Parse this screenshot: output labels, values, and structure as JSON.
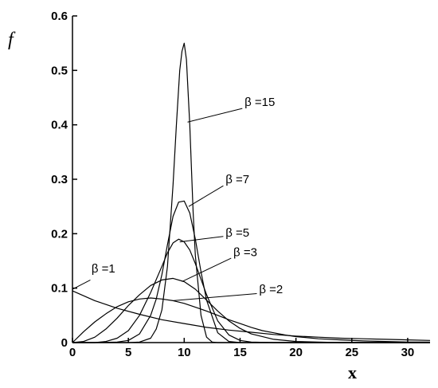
{
  "chart_data": {
    "type": "line",
    "title": "",
    "xlabel": "x",
    "ylabel": "f",
    "xlim": [
      0,
      32
    ],
    "ylim": [
      0,
      0.6
    ],
    "x_ticks": [
      "0",
      "5",
      "10",
      "15",
      "20",
      "25",
      "30"
    ],
    "y_ticks": [
      "0",
      "0.1",
      "0.2",
      "0.3",
      "0.4",
      "0.5",
      "0.6"
    ],
    "grid": false,
    "series": [
      {
        "name": "β =1",
        "x": [
          0,
          2,
          4,
          6,
          8,
          10,
          12,
          14,
          16,
          18,
          20,
          22,
          24,
          26,
          28,
          30,
          32
        ],
        "y": [
          0.095,
          0.077,
          0.063,
          0.052,
          0.042,
          0.035,
          0.028,
          0.023,
          0.019,
          0.015,
          0.012,
          0.01,
          0.008,
          0.007,
          0.006,
          0.005,
          0.004
        ]
      },
      {
        "name": "β =2",
        "x": [
          0,
          1,
          2,
          3,
          4,
          5,
          6,
          7,
          8,
          9,
          10,
          11,
          12,
          13,
          14,
          15,
          16,
          17,
          18,
          19,
          20,
          22,
          24,
          26,
          28,
          30,
          32
        ],
        "y": [
          0,
          0.02,
          0.038,
          0.053,
          0.066,
          0.075,
          0.08,
          0.082,
          0.08,
          0.077,
          0.072,
          0.065,
          0.058,
          0.05,
          0.042,
          0.035,
          0.028,
          0.022,
          0.018,
          0.014,
          0.011,
          0.007,
          0.005,
          0.003,
          0.002,
          0.001,
          0.001
        ]
      },
      {
        "name": "β =3",
        "x": [
          0,
          1,
          2,
          3,
          4,
          5,
          6,
          7,
          8,
          9,
          10,
          11,
          12,
          13,
          14,
          15,
          16,
          18,
          20,
          22,
          24,
          26,
          28,
          30,
          32
        ],
        "y": [
          0,
          0.002,
          0.01,
          0.025,
          0.045,
          0.068,
          0.088,
          0.105,
          0.115,
          0.118,
          0.112,
          0.098,
          0.078,
          0.058,
          0.04,
          0.026,
          0.016,
          0.006,
          0.002,
          0.001,
          0,
          0,
          0,
          0,
          0
        ]
      },
      {
        "name": "β =5",
        "x": [
          0,
          1,
          2,
          3,
          4,
          5,
          6,
          7,
          8,
          8.5,
          9,
          9.5,
          10,
          10.5,
          11,
          12,
          13,
          14,
          15,
          16,
          18,
          20,
          25,
          32
        ],
        "y": [
          0,
          0,
          0,
          0.002,
          0.008,
          0.022,
          0.05,
          0.092,
          0.14,
          0.165,
          0.183,
          0.19,
          0.185,
          0.17,
          0.145,
          0.088,
          0.04,
          0.014,
          0.004,
          0.001,
          0,
          0,
          0,
          0
        ]
      },
      {
        "name": "β =7",
        "x": [
          0,
          2,
          4,
          5,
          6,
          7,
          7.5,
          8,
          8.5,
          9,
          9.5,
          10,
          10.5,
          11,
          11.5,
          12,
          13,
          14,
          15,
          16,
          20,
          32
        ],
        "y": [
          0,
          0,
          0.001,
          0.004,
          0.016,
          0.05,
          0.08,
          0.125,
          0.18,
          0.232,
          0.258,
          0.26,
          0.238,
          0.19,
          0.13,
          0.078,
          0.018,
          0.002,
          0,
          0,
          0,
          0
        ]
      },
      {
        "name": "β =15",
        "x": [
          0,
          5,
          6,
          7,
          7.5,
          8,
          8.5,
          9,
          9.3,
          9.6,
          9.8,
          10,
          10.2,
          10.5,
          10.8,
          11,
          11.5,
          12,
          12.5,
          13,
          15,
          32
        ],
        "y": [
          0,
          0,
          0.001,
          0.008,
          0.025,
          0.06,
          0.14,
          0.29,
          0.4,
          0.5,
          0.535,
          0.55,
          0.52,
          0.4,
          0.24,
          0.16,
          0.05,
          0.01,
          0.001,
          0,
          0,
          0
        ]
      }
    ],
    "annotations": [
      {
        "label": "β =15",
        "series": 5,
        "text_xy": [
          15.4,
          0.435
        ],
        "line_from": [
          15.2,
          0.43
        ],
        "line_to": [
          10.3,
          0.405
        ]
      },
      {
        "label": "β =7",
        "series": 4,
        "text_xy": [
          13.7,
          0.293
        ],
        "line_from": [
          13.5,
          0.288
        ],
        "line_to": [
          10.4,
          0.25
        ]
      },
      {
        "label": "β =5",
        "series": 3,
        "text_xy": [
          13.7,
          0.195
        ],
        "line_from": [
          13.5,
          0.195
        ],
        "line_to": [
          9.6,
          0.185
        ]
      },
      {
        "label": "β =3",
        "series": 2,
        "text_xy": [
          14.4,
          0.159
        ],
        "line_from": [
          14.2,
          0.155
        ],
        "line_to": [
          9.8,
          0.112
        ]
      },
      {
        "label": "β =2",
        "series": 1,
        "text_xy": [
          16.7,
          0.091
        ],
        "line_from": [
          16.5,
          0.09
        ],
        "line_to": [
          9.0,
          0.077
        ]
      },
      {
        "label": "β =1",
        "series": 0,
        "text_xy": [
          1.7,
          0.129
        ],
        "line_from": [
          1.6,
          0.115
        ],
        "line_to": [
          0,
          0.098
        ]
      }
    ]
  }
}
